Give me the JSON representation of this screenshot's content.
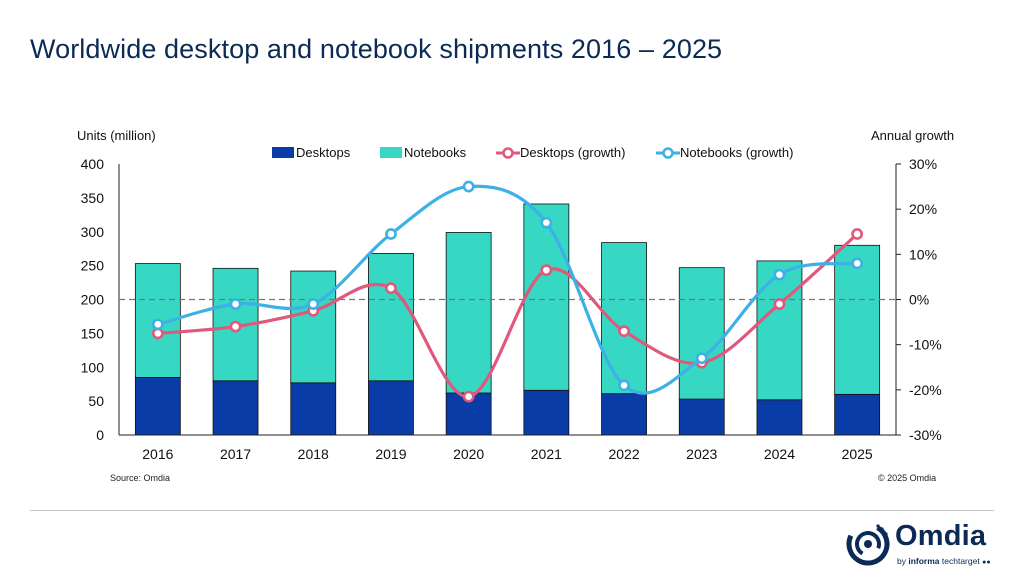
{
  "header": {
    "title": "Worldwide desktop and notebook shipments 2016 – 2025"
  },
  "footer": {
    "source": "Source: Omdia",
    "copyright": "© 2025 Omdia"
  },
  "brand": {
    "name": "Omdia",
    "tagline_prefix": "by",
    "tagline_bold": "informa",
    "tagline_rest": "techtarget"
  },
  "colors": {
    "desktops": "#0a3ca8",
    "notebooks": "#36d8c4",
    "desktops_growth": "#e0587b",
    "notebooks_growth": "#3db1e6",
    "title": "#0b2a55"
  },
  "chart_data": {
    "type": "bar",
    "stacked": true,
    "categories": [
      "2016",
      "2017",
      "2018",
      "2019",
      "2020",
      "2021",
      "2022",
      "2023",
      "2024",
      "2025"
    ],
    "ylabel": "Units (million)",
    "y2label": "Annual growth",
    "ylim": [
      0,
      400
    ],
    "yticks": [
      0,
      50,
      100,
      150,
      200,
      250,
      300,
      350,
      400
    ],
    "y2lim": [
      -30,
      30
    ],
    "y2ticks": [
      "-30%",
      "-20%",
      "-10%",
      "0%",
      "10%",
      "20%",
      "30%"
    ],
    "legend_position": "top",
    "series": [
      {
        "name": "Desktops",
        "type": "bar",
        "axis": "left",
        "values": [
          85,
          80,
          77,
          80,
          62,
          66,
          61,
          53,
          52,
          60
        ]
      },
      {
        "name": "Notebooks",
        "type": "bar",
        "axis": "left",
        "values": [
          168,
          166,
          165,
          188,
          237,
          275,
          223,
          194,
          205,
          220
        ]
      },
      {
        "name": "Desktops (growth)",
        "type": "line",
        "axis": "right",
        "unit": "%",
        "values": [
          -7.5,
          -6.0,
          -2.5,
          2.5,
          -21.5,
          6.5,
          -7.0,
          -14.0,
          -1.0,
          14.5
        ]
      },
      {
        "name": "Notebooks (growth)",
        "type": "line",
        "axis": "right",
        "unit": "%",
        "values": [
          -5.5,
          -1.0,
          -1.0,
          14.5,
          25.0,
          17.0,
          -19.0,
          -13.0,
          5.5,
          8.0
        ]
      }
    ],
    "reference_line": {
      "axis": "right",
      "value": 0,
      "style": "dashed"
    }
  }
}
